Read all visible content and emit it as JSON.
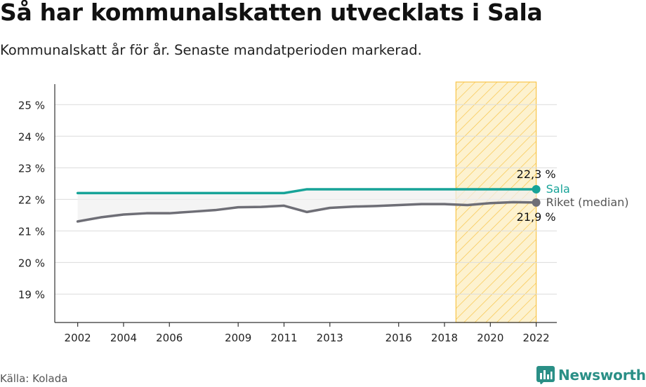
{
  "header": {
    "title": "Så har kommunalskatten utvecklats i Sala",
    "subtitle": "Kommunalskatt år för år. Senaste mandatperioden markerad."
  },
  "footer": {
    "source": "Källa: Kolada",
    "brand": "Newsworthy"
  },
  "colors": {
    "sala": "#17a398",
    "riket": "#6e6e76",
    "highlight_fill": "#fdf2cf",
    "highlight_stroke": "#f8c54a",
    "band_fill": "#efefef"
  },
  "chart_data": {
    "type": "line",
    "title": "Så har kommunalskatten utvecklats i Sala",
    "subtitle": "Kommunalskatt år för år. Senaste mandatperioden markerad.",
    "xlabel": "",
    "ylabel": "",
    "x": [
      2002,
      2003,
      2004,
      2005,
      2006,
      2007,
      2008,
      2009,
      2010,
      2011,
      2012,
      2013,
      2014,
      2015,
      2016,
      2017,
      2018,
      2019,
      2020,
      2021,
      2022
    ],
    "x_ticks": [
      2002,
      2004,
      2006,
      2009,
      2011,
      2013,
      2016,
      2018,
      2020,
      2022
    ],
    "y_ticks": [
      19,
      20,
      21,
      22,
      23,
      24,
      25
    ],
    "y_tick_labels": [
      "19 %",
      "20 %",
      "21 %",
      "22 %",
      "23 %",
      "24 %",
      "25 %"
    ],
    "xlim": [
      2001.0,
      2022.9
    ],
    "ylim": [
      18.1,
      25.65
    ],
    "highlight_period": [
      2018.5,
      2022
    ],
    "series": [
      {
        "name": "Sala",
        "values": [
          22.2,
          22.2,
          22.2,
          22.2,
          22.2,
          22.2,
          22.2,
          22.2,
          22.2,
          22.2,
          22.32,
          22.32,
          22.32,
          22.32,
          22.32,
          22.32,
          22.32,
          22.32,
          22.32,
          22.32,
          22.32
        ],
        "end_label": "22,3 %"
      },
      {
        "name": "Riket (median)",
        "values": [
          21.3,
          21.43,
          21.52,
          21.56,
          21.56,
          21.61,
          21.66,
          21.75,
          21.76,
          21.8,
          21.6,
          21.73,
          21.77,
          21.79,
          21.82,
          21.85,
          21.85,
          21.82,
          21.88,
          21.91,
          21.9
        ],
        "end_label": "21,9 %"
      }
    ],
    "grid": "horizontal"
  }
}
